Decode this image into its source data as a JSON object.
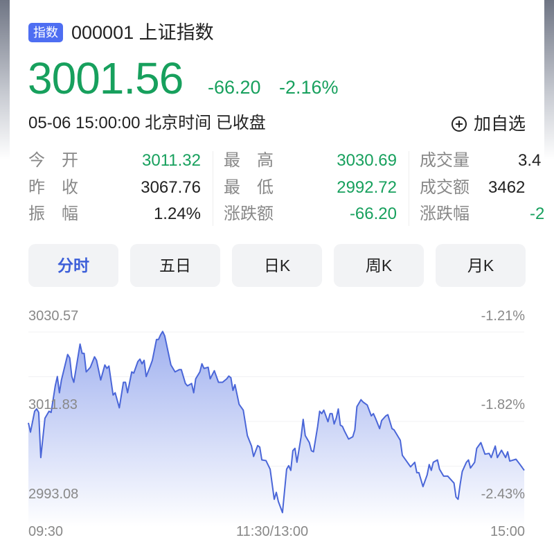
{
  "header": {
    "badge": "指数",
    "title": "000001 上证指数",
    "price": "3001.56",
    "change": "-66.20",
    "change_pct": "-2.16%",
    "datetime": "05-06 15:00:00 北京时间 已收盘",
    "watch_label": "加自选",
    "watch_icon": "plus-circle-icon"
  },
  "stats": [
    {
      "label": "今　开",
      "value": "3011.32",
      "color": "green"
    },
    {
      "label": "昨　收",
      "value": "3067.76",
      "color": "dark"
    },
    {
      "label": "振　幅",
      "value": "1.24%",
      "color": "dark"
    },
    {
      "label": "最　高",
      "value": "3030.69",
      "color": "green"
    },
    {
      "label": "最　低",
      "value": "2992.72",
      "color": "green"
    },
    {
      "label": "涨跌额",
      "value": "-66.20",
      "color": "green"
    },
    {
      "label": "成交量",
      "value": "3.4",
      "color": "dark"
    },
    {
      "label": "成交额",
      "value": "3462",
      "color": "dark"
    },
    {
      "label": "涨跌幅",
      "value": "-2",
      "color": "green"
    }
  ],
  "tabs": [
    {
      "label": "分时",
      "active": true
    },
    {
      "label": "五日",
      "active": false
    },
    {
      "label": "日K",
      "active": false
    },
    {
      "label": "周K",
      "active": false
    },
    {
      "label": "月K",
      "active": false
    }
  ],
  "colors": {
    "up_down_green": "#17a05d",
    "accent": "#3d5fd9",
    "line": "#4a66d8",
    "badge": "#4e6ef2"
  },
  "chart_data": {
    "type": "area",
    "y_left_ticks": [
      "3030.57",
      "3011.83",
      "2993.08"
    ],
    "y_right_ticks": [
      "-1.21%",
      "-1.82%",
      "-2.43%"
    ],
    "x_ticks": [
      "09:30",
      "11:30/13:00",
      "15:00"
    ],
    "ylim": [
      2993.08,
      3030.57
    ],
    "grid": true,
    "points": [
      [
        "09:30",
        3011.53
      ],
      [
        "09:31",
        3009.59
      ],
      [
        "09:33",
        3013.96
      ],
      [
        "09:34",
        3014.45
      ],
      [
        "09:35",
        3013.72
      ],
      [
        "09:36",
        3004.25
      ],
      [
        "09:38",
        3012.5
      ],
      [
        "09:40",
        3013.96
      ],
      [
        "09:41",
        3013.72
      ],
      [
        "09:43",
        3019.3
      ],
      [
        "09:44",
        3021.24
      ],
      [
        "09:45",
        3017.84
      ],
      [
        "09:46",
        3020.52
      ],
      [
        "09:49",
        3025.86
      ],
      [
        "09:50",
        3025.13
      ],
      [
        "09:51",
        3021.24
      ],
      [
        "09:52",
        3020.03
      ],
      [
        "09:55",
        3028.04
      ],
      [
        "09:56",
        3026.1
      ],
      [
        "09:57",
        3026.1
      ],
      [
        "09:58",
        3022.22
      ],
      [
        "10:00",
        3023.19
      ],
      [
        "10:02",
        3025.37
      ],
      [
        "10:03",
        3024.64
      ],
      [
        "10:05",
        3020.52
      ],
      [
        "10:07",
        3023.67
      ],
      [
        "10:08",
        3022.94
      ],
      [
        "10:09",
        3023.43
      ],
      [
        "10:11",
        3017.36
      ],
      [
        "10:12",
        3017.84
      ],
      [
        "10:14",
        3014.69
      ],
      [
        "10:16",
        3020.03
      ],
      [
        "10:17",
        3020.03
      ],
      [
        "10:18",
        3017.84
      ],
      [
        "10:20",
        3022.22
      ],
      [
        "10:21",
        3021.97
      ],
      [
        "10:23",
        3024.4
      ],
      [
        "10:24",
        3024.89
      ],
      [
        "10:25",
        3023.92
      ],
      [
        "10:26",
        3024.64
      ],
      [
        "10:27",
        3021.24
      ],
      [
        "10:29",
        3023.43
      ],
      [
        "10:30",
        3024.64
      ],
      [
        "10:32",
        3029.02
      ],
      [
        "10:33",
        3029.02
      ],
      [
        "10:34",
        3029.99
      ],
      [
        "10:35",
        3030.69
      ],
      [
        "10:36",
        3029.74
      ],
      [
        "10:39",
        3023.67
      ],
      [
        "10:41",
        3022.22
      ],
      [
        "10:43",
        3022.7
      ],
      [
        "10:44",
        3022.7
      ],
      [
        "10:46",
        3019.79
      ],
      [
        "10:47",
        3019.3
      ],
      [
        "10:49",
        3019.79
      ],
      [
        "10:50",
        3017.84
      ],
      [
        "10:51",
        3020.76
      ],
      [
        "10:53",
        3022.22
      ],
      [
        "10:54",
        3023.92
      ],
      [
        "10:55",
        3022.94
      ],
      [
        "10:57",
        3023.19
      ],
      [
        "10:58",
        3020.76
      ],
      [
        "11:00",
        3022.46
      ],
      [
        "11:02",
        3020.03
      ],
      [
        "11:04",
        3020.03
      ],
      [
        "11:06",
        3020.76
      ],
      [
        "11:07",
        3021.34
      ],
      [
        "11:08",
        3021.0
      ],
      [
        "11:09",
        3018.33
      ],
      [
        "11:10",
        3019.54
      ],
      [
        "11:12",
        3015.42
      ],
      [
        "11:14",
        3014.2
      ],
      [
        "11:16",
        3008.86
      ],
      [
        "11:18",
        3006.67
      ],
      [
        "11:19",
        3004.49
      ],
      [
        "11:21",
        3006.77
      ],
      [
        "11:22",
        3006.43
      ],
      [
        "11:23",
        3003.76
      ],
      [
        "11:25",
        3003.61
      ],
      [
        "11:27",
        3001.82
      ],
      [
        "11:29",
        2995.5
      ],
      [
        "11:30",
        2996.96
      ],
      [
        "13:01",
        2995.02
      ],
      [
        "13:03",
        2992.72
      ],
      [
        "13:05",
        3001.82
      ],
      [
        "13:06",
        3002.55
      ],
      [
        "13:07",
        3001.57
      ],
      [
        "13:08",
        3005.7
      ],
      [
        "13:09",
        3006.19
      ],
      [
        "13:10",
        3003.27
      ],
      [
        "13:12",
        3008.62
      ],
      [
        "13:13",
        3012.26
      ],
      [
        "13:14",
        3008.86
      ],
      [
        "13:16",
        3007.4
      ],
      [
        "13:17",
        3005.7
      ],
      [
        "13:18",
        3005.46
      ],
      [
        "13:20",
        3010.8
      ],
      [
        "13:21",
        3013.96
      ],
      [
        "13:22",
        3013.47
      ],
      [
        "13:23",
        3014.2
      ],
      [
        "13:25",
        3011.77
      ],
      [
        "13:26",
        3013.47
      ],
      [
        "13:27",
        3013.47
      ],
      [
        "13:28",
        3011.29
      ],
      [
        "13:29",
        3012.5
      ],
      [
        "13:30",
        3014.44
      ],
      [
        "13:31",
        3011.04
      ],
      [
        "13:32",
        3010.8
      ],
      [
        "13:33",
        3009.83
      ],
      [
        "13:35",
        3008.13
      ],
      [
        "13:37",
        3008.62
      ],
      [
        "13:38",
        3010.07
      ],
      [
        "13:39",
        3014.93
      ],
      [
        "13:41",
        3016.39
      ],
      [
        "13:42",
        3015.9
      ],
      [
        "13:44",
        3015.27
      ],
      [
        "13:46",
        3012.99
      ],
      [
        "13:47",
        3013.47
      ],
      [
        "13:48",
        3012.5
      ],
      [
        "13:50",
        3010.32
      ],
      [
        "13:51",
        3012.02
      ],
      [
        "13:53",
        3012.99
      ],
      [
        "13:54",
        3013.23
      ],
      [
        "13:56",
        3010.32
      ],
      [
        "13:57",
        3010.07
      ],
      [
        "14:00",
        3007.89
      ],
      [
        "14:01",
        3004.73
      ],
      [
        "14:03",
        3003.52
      ],
      [
        "14:05",
        3002.3
      ],
      [
        "14:07",
        3003.27
      ],
      [
        "14:08",
        3001.09
      ],
      [
        "14:09",
        3001.09
      ],
      [
        "14:11",
        2998.17
      ],
      [
        "14:13",
        3000.6
      ],
      [
        "14:14",
        3002.79
      ],
      [
        "14:15",
        3001.57
      ],
      [
        "14:16",
        3003.27
      ],
      [
        "14:18",
        3003.76
      ],
      [
        "14:19",
        3001.82
      ],
      [
        "14:21",
        3000.36
      ],
      [
        "14:23",
        3000.36
      ],
      [
        "14:26",
        2998.9
      ],
      [
        "14:27",
        2995.99
      ],
      [
        "14:28",
        2995.5
      ],
      [
        "14:29",
        2998.66
      ],
      [
        "14:30",
        3001.33
      ],
      [
        "14:32",
        3003.27
      ],
      [
        "14:33",
        3003.76
      ],
      [
        "14:34",
        3002.06
      ],
      [
        "14:36",
        3003.27
      ],
      [
        "14:37",
        3006.19
      ],
      [
        "14:39",
        3007.4
      ],
      [
        "14:41",
        3004.97
      ],
      [
        "14:43",
        3005.12
      ],
      [
        "14:44",
        3004.25
      ],
      [
        "14:46",
        3006.67
      ],
      [
        "14:47",
        3004.25
      ],
      [
        "14:49",
        3005.8
      ],
      [
        "14:51",
        3004.25
      ],
      [
        "14:52",
        3005.46
      ],
      [
        "14:53",
        3003.52
      ],
      [
        "14:56",
        3003.91
      ],
      [
        "14:58",
        3002.79
      ],
      [
        "15:00",
        3001.56
      ]
    ]
  }
}
